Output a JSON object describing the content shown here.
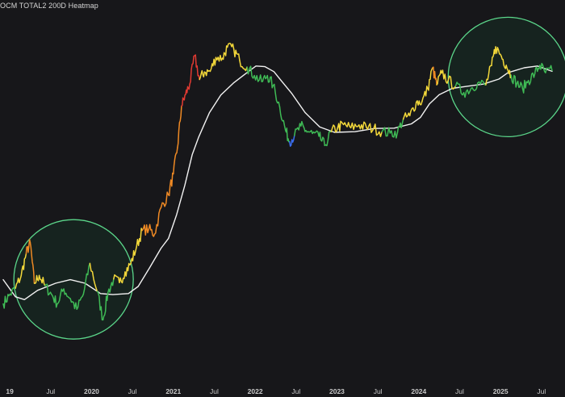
{
  "header": {
    "title": "OCM TOTAL2 200D Heatmap"
  },
  "chart_data": {
    "type": "line",
    "title": "OCM TOTAL2 200D Heatmap",
    "x_axis": {
      "tick_labels": [
        {
          "label": "19",
          "year": 2019.0
        },
        {
          "label": "Jul",
          "year": 2019.5
        },
        {
          "label": "2020",
          "year": 2020.0
        },
        {
          "label": "Jul",
          "year": 2020.5
        },
        {
          "label": "2021",
          "year": 2021.0
        },
        {
          "label": "Jul",
          "year": 2021.5
        },
        {
          "label": "2022",
          "year": 2022.0
        },
        {
          "label": "Jul",
          "year": 2022.5
        },
        {
          "label": "2023",
          "year": 2023.0
        },
        {
          "label": "Jul",
          "year": 2023.5
        },
        {
          "label": "2024",
          "year": 2024.0
        },
        {
          "label": "Jul",
          "year": 2024.5
        },
        {
          "label": "2025",
          "year": 2025.0
        },
        {
          "label": "Jul",
          "year": 2025.5
        }
      ],
      "range": [
        2018.92,
        2025.63
      ]
    },
    "y_axis": {
      "visible": false,
      "range": [
        0,
        100
      ],
      "unit": "relative"
    },
    "grid": false,
    "legend": "none",
    "colors": {
      "background": "#17171a",
      "ma_line": "#f2f2f2",
      "circle": "#5bd68a",
      "circle_fill": "#16231f",
      "heat_blue": "#3a6df0",
      "heat_green": "#3fba55",
      "heat_yellow": "#f3d83a",
      "heat_orange": "#f08a24",
      "heat_red": "#e23a32",
      "axis_text": "#c9c9c9"
    },
    "series": [
      {
        "name": "TOTAL2",
        "style": "heatmap-colored line",
        "points": [
          [
            2018.92,
            17.6,
            "g"
          ],
          [
            2018.99,
            19.9,
            "g"
          ],
          [
            2019.07,
            22.0,
            "y"
          ],
          [
            2019.14,
            25.6,
            "y"
          ],
          [
            2019.2,
            31.7,
            "o"
          ],
          [
            2019.25,
            34.9,
            "o"
          ],
          [
            2019.3,
            23.4,
            "y"
          ],
          [
            2019.36,
            25.6,
            "y"
          ],
          [
            2019.43,
            22.7,
            "g"
          ],
          [
            2019.51,
            20.3,
            "g"
          ],
          [
            2019.58,
            17.6,
            "g"
          ],
          [
            2019.66,
            21.8,
            "g"
          ],
          [
            2019.74,
            19.1,
            "g"
          ],
          [
            2019.82,
            16.1,
            "g"
          ],
          [
            2019.9,
            20.3,
            "g"
          ],
          [
            2019.98,
            29.0,
            "y"
          ],
          [
            2020.07,
            21.1,
            "g"
          ],
          [
            2020.14,
            13.1,
            "g"
          ],
          [
            2020.2,
            20.7,
            "g"
          ],
          [
            2020.27,
            24.6,
            "y"
          ],
          [
            2020.34,
            23.6,
            "y"
          ],
          [
            2020.41,
            26.6,
            "y"
          ],
          [
            2020.48,
            29.0,
            "y"
          ],
          [
            2020.55,
            33.7,
            "y"
          ],
          [
            2020.62,
            38.3,
            "o"
          ],
          [
            2020.7,
            38.7,
            "o"
          ],
          [
            2020.77,
            37.2,
            "o"
          ],
          [
            2020.85,
            44.8,
            "o"
          ],
          [
            2020.94,
            48.3,
            "o"
          ],
          [
            2021.0,
            54.2,
            "o"
          ],
          [
            2021.05,
            61.6,
            "o"
          ],
          [
            2021.1,
            73.3,
            "r"
          ],
          [
            2021.15,
            76.6,
            "r"
          ],
          [
            2021.2,
            79.5,
            "r"
          ],
          [
            2021.26,
            87.5,
            "r"
          ],
          [
            2021.32,
            80.8,
            "y"
          ],
          [
            2021.38,
            82.9,
            "y"
          ],
          [
            2021.45,
            83.1,
            "y"
          ],
          [
            2021.52,
            87.0,
            "y"
          ],
          [
            2021.6,
            86.8,
            "y"
          ],
          [
            2021.66,
            89.9,
            "y"
          ],
          [
            2021.74,
            89.2,
            "y"
          ],
          [
            2021.81,
            86.2,
            "y"
          ],
          [
            2021.9,
            84.3,
            "g"
          ],
          [
            2021.99,
            81.9,
            "g"
          ],
          [
            2022.08,
            80.2,
            "g"
          ],
          [
            2022.15,
            81.9,
            "g"
          ],
          [
            2022.22,
            79.1,
            "g"
          ],
          [
            2022.3,
            73.1,
            "g"
          ],
          [
            2022.37,
            66.6,
            "g"
          ],
          [
            2022.42,
            63.3,
            "b"
          ],
          [
            2022.48,
            65.0,
            "g"
          ],
          [
            2022.56,
            67.7,
            "g"
          ],
          [
            2022.62,
            66.4,
            "g"
          ],
          [
            2022.7,
            65.6,
            "g"
          ],
          [
            2022.78,
            64.8,
            "g"
          ],
          [
            2022.85,
            62.2,
            "g"
          ],
          [
            2022.93,
            66.1,
            "y"
          ],
          [
            2023.01,
            67.3,
            "y"
          ],
          [
            2023.08,
            68.1,
            "y"
          ],
          [
            2023.17,
            67.2,
            "y"
          ],
          [
            2023.27,
            68.0,
            "y"
          ],
          [
            2023.36,
            67.3,
            "y"
          ],
          [
            2023.45,
            67.0,
            "y"
          ],
          [
            2023.55,
            66.1,
            "g"
          ],
          [
            2023.65,
            65.7,
            "g"
          ],
          [
            2023.74,
            65.9,
            "g"
          ],
          [
            2023.81,
            69.6,
            "y"
          ],
          [
            2023.89,
            70.6,
            "y"
          ],
          [
            2023.97,
            74.4,
            "y"
          ],
          [
            2024.04,
            74.6,
            "y"
          ],
          [
            2024.11,
            78.2,
            "y"
          ],
          [
            2024.17,
            84.1,
            "o"
          ],
          [
            2024.22,
            79.3,
            "y"
          ],
          [
            2024.28,
            82.6,
            "y"
          ],
          [
            2024.36,
            80.6,
            "y"
          ],
          [
            2024.45,
            78.9,
            "g"
          ],
          [
            2024.55,
            77.1,
            "g"
          ],
          [
            2024.64,
            78.3,
            "g"
          ],
          [
            2024.72,
            79.8,
            "g"
          ],
          [
            2024.82,
            79.3,
            "y"
          ],
          [
            2024.89,
            84.7,
            "y"
          ],
          [
            2024.94,
            90.0,
            "y"
          ],
          [
            2025.01,
            87.3,
            "y"
          ],
          [
            2025.07,
            84.8,
            "y"
          ],
          [
            2025.13,
            82.0,
            "g"
          ],
          [
            2025.2,
            79.7,
            "g"
          ],
          [
            2025.27,
            78.2,
            "g"
          ],
          [
            2025.34,
            80.5,
            "g"
          ],
          [
            2025.42,
            82.5,
            "g"
          ],
          [
            2025.48,
            84.8,
            "g"
          ],
          [
            2025.55,
            82.7,
            "g"
          ],
          [
            2025.63,
            83.3,
            "g"
          ]
        ]
      },
      {
        "name": "200D",
        "style": "white line",
        "points": [
          [
            2018.92,
            24.4
          ],
          [
            2019.07,
            19.6
          ],
          [
            2019.18,
            18.8
          ],
          [
            2019.34,
            21.4
          ],
          [
            2019.56,
            23.4
          ],
          [
            2019.74,
            24.4
          ],
          [
            2019.92,
            23.4
          ],
          [
            2020.11,
            20.5
          ],
          [
            2020.26,
            20.2
          ],
          [
            2020.45,
            20.5
          ],
          [
            2020.57,
            22.5
          ],
          [
            2020.71,
            27.8
          ],
          [
            2020.85,
            33.3
          ],
          [
            2020.94,
            36.0
          ],
          [
            2021.04,
            42.7
          ],
          [
            2021.14,
            51.0
          ],
          [
            2021.23,
            59.6
          ],
          [
            2021.31,
            64.6
          ],
          [
            2021.44,
            71.4
          ],
          [
            2021.58,
            76.4
          ],
          [
            2021.74,
            79.9
          ],
          [
            2021.87,
            82.2
          ],
          [
            2022.01,
            84.6
          ],
          [
            2022.12,
            84.4
          ],
          [
            2022.23,
            83.0
          ],
          [
            2022.32,
            80.4
          ],
          [
            2022.45,
            76.8
          ],
          [
            2022.61,
            71.5
          ],
          [
            2022.79,
            67.4
          ],
          [
            2022.97,
            65.9
          ],
          [
            2023.22,
            66.1
          ],
          [
            2023.46,
            67.0
          ],
          [
            2023.7,
            67.1
          ],
          [
            2023.91,
            68.3
          ],
          [
            2024.02,
            70.1
          ],
          [
            2024.13,
            73.9
          ],
          [
            2024.25,
            76.5
          ],
          [
            2024.41,
            78.3
          ],
          [
            2024.6,
            78.9
          ],
          [
            2024.79,
            79.5
          ],
          [
            2024.98,
            80.9
          ],
          [
            2025.09,
            82.7
          ],
          [
            2025.29,
            84.1
          ],
          [
            2025.45,
            84.6
          ],
          [
            2025.63,
            83.1
          ]
        ]
      }
    ],
    "annotations": [
      {
        "type": "circle",
        "center_year": 2019.78,
        "center_value": 24.5,
        "label": ""
      },
      {
        "type": "circle",
        "center_year": 2025.09,
        "center_value": 81.5,
        "label": ""
      }
    ]
  }
}
